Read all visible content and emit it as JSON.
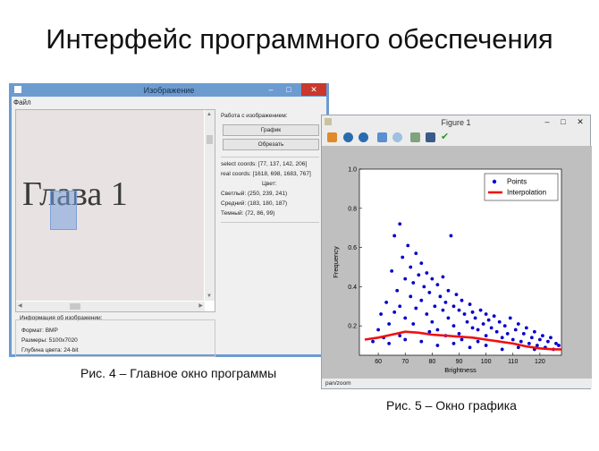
{
  "slide": {
    "title": "Интерфейс программного обеспечения",
    "caption_left": "Рис. 4 – Главное окно программы",
    "caption_right": "Рис. 5 – Окно графика"
  },
  "main_window": {
    "title": "Изображение",
    "menu_file": "Файл",
    "image_text": "Глава 1",
    "panel": {
      "group_title": "Работа с изображением:",
      "graph_button": "График",
      "crop_button": "Обрезать",
      "select_coords": "select coords: [77, 137, 142, 206]",
      "real_coords": "real coords: [1618, 698, 1683, 767]",
      "color_header": "Цвет:",
      "light": "Светлый: (250, 239, 241)",
      "medium": "Средний: (183, 180, 187)",
      "dark": "Темный: (72, 86, 99)"
    },
    "info": {
      "group_title": "Информация об изображении:",
      "format": "Формат: BMP",
      "size": "Размеры: 5100x7020",
      "depth": "Глубина цвета: 24-bit"
    },
    "colors": {
      "frame": "#6c9bd0",
      "close": "#c8382c",
      "selection": "#7aa0d8"
    }
  },
  "figure_window": {
    "title": "Figure 1",
    "status": "pan/zoom",
    "toolbar_icons": [
      "home-icon",
      "back-icon",
      "forward-icon",
      "pan-icon",
      "zoom-icon",
      "subplots-icon",
      "save-icon",
      "check-icon"
    ]
  },
  "chart_data": {
    "type": "scatter",
    "title": "",
    "xlabel": "Brightness",
    "ylabel": "Frequency",
    "xlim": [
      53,
      128
    ],
    "ylim": [
      0.05,
      1.0
    ],
    "x_ticks": [
      60,
      70,
      80,
      90,
      100,
      110,
      120
    ],
    "y_ticks": [
      0.2,
      0.4,
      0.6,
      0.8,
      1.0
    ],
    "x_tick_labels": [
      "60",
      "70",
      "80",
      "90",
      "100",
      "110",
      "120"
    ],
    "y_tick_labels": [
      "0.2",
      "0.4",
      "0.6",
      "0.8",
      "1.0"
    ],
    "legend_position": "top-right",
    "series": [
      {
        "name": "Points",
        "kind": "scatter",
        "color": "#0000cc",
        "points": [
          [
            58,
            0.12
          ],
          [
            60,
            0.18
          ],
          [
            61,
            0.26
          ],
          [
            62,
            0.14
          ],
          [
            63,
            0.32
          ],
          [
            64,
            0.21
          ],
          [
            65,
            0.48
          ],
          [
            66,
            0.27
          ],
          [
            66,
            0.66
          ],
          [
            67,
            0.38
          ],
          [
            68,
            0.72
          ],
          [
            68,
            0.15
          ],
          [
            69,
            0.55
          ],
          [
            70,
            0.44
          ],
          [
            70,
            0.24
          ],
          [
            71,
            0.61
          ],
          [
            72,
            0.35
          ],
          [
            72,
            0.5
          ],
          [
            73,
            0.42
          ],
          [
            74,
            0.29
          ],
          [
            74,
            0.57
          ],
          [
            75,
            0.46
          ],
          [
            76,
            0.33
          ],
          [
            76,
            0.52
          ],
          [
            77,
            0.4
          ],
          [
            78,
            0.26
          ],
          [
            78,
            0.47
          ],
          [
            79,
            0.37
          ],
          [
            80,
            0.44
          ],
          [
            80,
            0.22
          ],
          [
            81,
            0.3
          ],
          [
            82,
            0.41
          ],
          [
            82,
            0.18
          ],
          [
            83,
            0.35
          ],
          [
            84,
            0.28
          ],
          [
            84,
            0.45
          ],
          [
            85,
            0.32
          ],
          [
            86,
            0.24
          ],
          [
            86,
            0.38
          ],
          [
            87,
            0.66
          ],
          [
            88,
            0.3
          ],
          [
            88,
            0.2
          ],
          [
            89,
            0.36
          ],
          [
            90,
            0.28
          ],
          [
            90,
            0.16
          ],
          [
            91,
            0.33
          ],
          [
            92,
            0.26
          ],
          [
            93,
            0.22
          ],
          [
            94,
            0.31
          ],
          [
            95,
            0.19
          ],
          [
            95,
            0.27
          ],
          [
            96,
            0.24
          ],
          [
            97,
            0.18
          ],
          [
            98,
            0.28
          ],
          [
            99,
            0.21
          ],
          [
            100,
            0.26
          ],
          [
            100,
            0.15
          ],
          [
            101,
            0.23
          ],
          [
            102,
            0.19
          ],
          [
            103,
            0.25
          ],
          [
            104,
            0.17
          ],
          [
            105,
            0.22
          ],
          [
            106,
            0.14
          ],
          [
            107,
            0.2
          ],
          [
            108,
            0.16
          ],
          [
            109,
            0.24
          ],
          [
            110,
            0.13
          ],
          [
            111,
            0.18
          ],
          [
            112,
            0.21
          ],
          [
            113,
            0.12
          ],
          [
            114,
            0.16
          ],
          [
            115,
            0.19
          ],
          [
            116,
            0.11
          ],
          [
            117,
            0.14
          ],
          [
            118,
            0.17
          ],
          [
            119,
            0.1
          ],
          [
            120,
            0.13
          ],
          [
            121,
            0.15
          ],
          [
            122,
            0.09
          ],
          [
            123,
            0.12
          ],
          [
            124,
            0.14
          ],
          [
            125,
            0.08
          ],
          [
            126,
            0.11
          ],
          [
            127,
            0.1
          ],
          [
            64,
            0.11
          ],
          [
            70,
            0.13
          ],
          [
            76,
            0.12
          ],
          [
            82,
            0.1
          ],
          [
            88,
            0.11
          ],
          [
            94,
            0.09
          ],
          [
            100,
            0.1
          ],
          [
            106,
            0.08
          ],
          [
            112,
            0.09
          ],
          [
            118,
            0.08
          ],
          [
            68,
            0.3
          ],
          [
            73,
            0.21
          ],
          [
            79,
            0.17
          ],
          [
            85,
            0.15
          ],
          [
            91,
            0.13
          ],
          [
            97,
            0.12
          ]
        ]
      },
      {
        "name": "Interpolation",
        "kind": "line",
        "color": "#ee1111",
        "points": [
          [
            55,
            0.13
          ],
          [
            60,
            0.14
          ],
          [
            65,
            0.155
          ],
          [
            70,
            0.17
          ],
          [
            75,
            0.165
          ],
          [
            80,
            0.155
          ],
          [
            85,
            0.15
          ],
          [
            90,
            0.145
          ],
          [
            95,
            0.14
          ],
          [
            100,
            0.13
          ],
          [
            105,
            0.12
          ],
          [
            110,
            0.11
          ],
          [
            115,
            0.095
          ],
          [
            120,
            0.085
          ],
          [
            125,
            0.08
          ],
          [
            128,
            0.08
          ]
        ]
      }
    ]
  }
}
